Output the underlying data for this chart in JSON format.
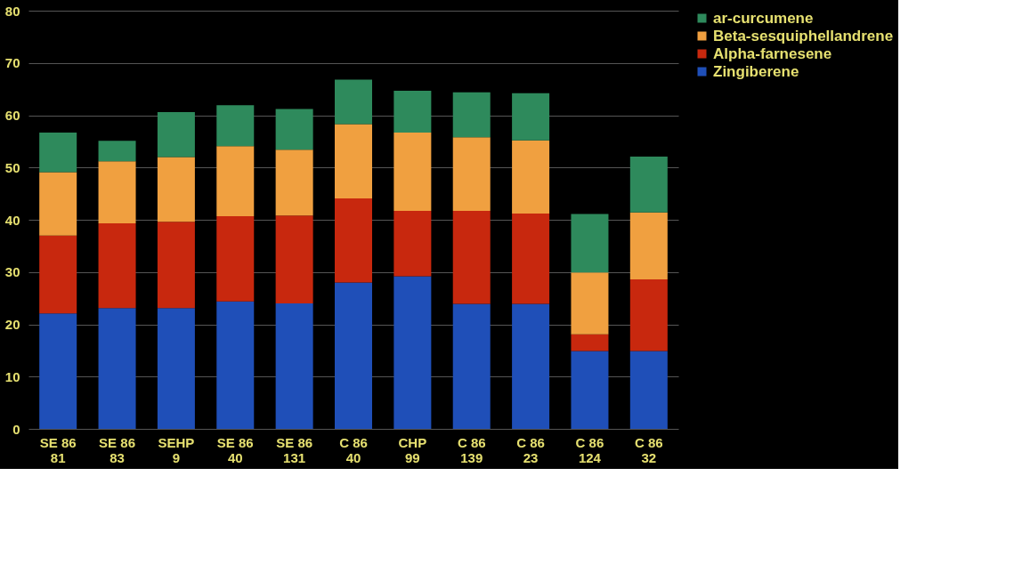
{
  "chart_data": {
    "type": "bar",
    "stacked": true,
    "categories": [
      "SE 86\n81",
      "SE 86\n83",
      "SEHP\n9",
      "SE 86\n40",
      "SE 86\n131",
      "C 86\n40",
      "CHP\n99",
      "C 86\n139",
      "C 86\n23",
      "C 86\n124",
      "C 86\n32"
    ],
    "series": [
      {
        "name": "Zingiberene",
        "color": "#1f4fb8",
        "values": [
          22.1,
          23.1,
          23.1,
          24.4,
          24.0,
          28.0,
          29.2,
          23.9,
          23.9,
          14.9,
          14.9
        ]
      },
      {
        "name": "Alpha-farnesene",
        "color": "#c8280e",
        "values": [
          14.9,
          16.2,
          16.5,
          16.3,
          16.8,
          16.1,
          12.5,
          17.8,
          17.3,
          3.2,
          13.7
        ]
      },
      {
        "name": "Beta-sesquiphellandrene",
        "color": "#f0a040",
        "values": [
          12.1,
          11.9,
          12.4,
          13.4,
          12.6,
          14.2,
          15.0,
          14.1,
          14.0,
          11.8,
          12.8
        ]
      },
      {
        "name": "ar-curcumene",
        "color": "#2e8a5c",
        "values": [
          7.6,
          3.9,
          8.6,
          7.8,
          7.8,
          8.5,
          8.0,
          8.6,
          9.0,
          11.2,
          10.7
        ]
      }
    ],
    "ylim": [
      0,
      80
    ],
    "yticks": [
      0,
      10,
      20,
      30,
      40,
      50,
      60,
      70,
      80
    ],
    "grid": "y",
    "legend": "right"
  }
}
